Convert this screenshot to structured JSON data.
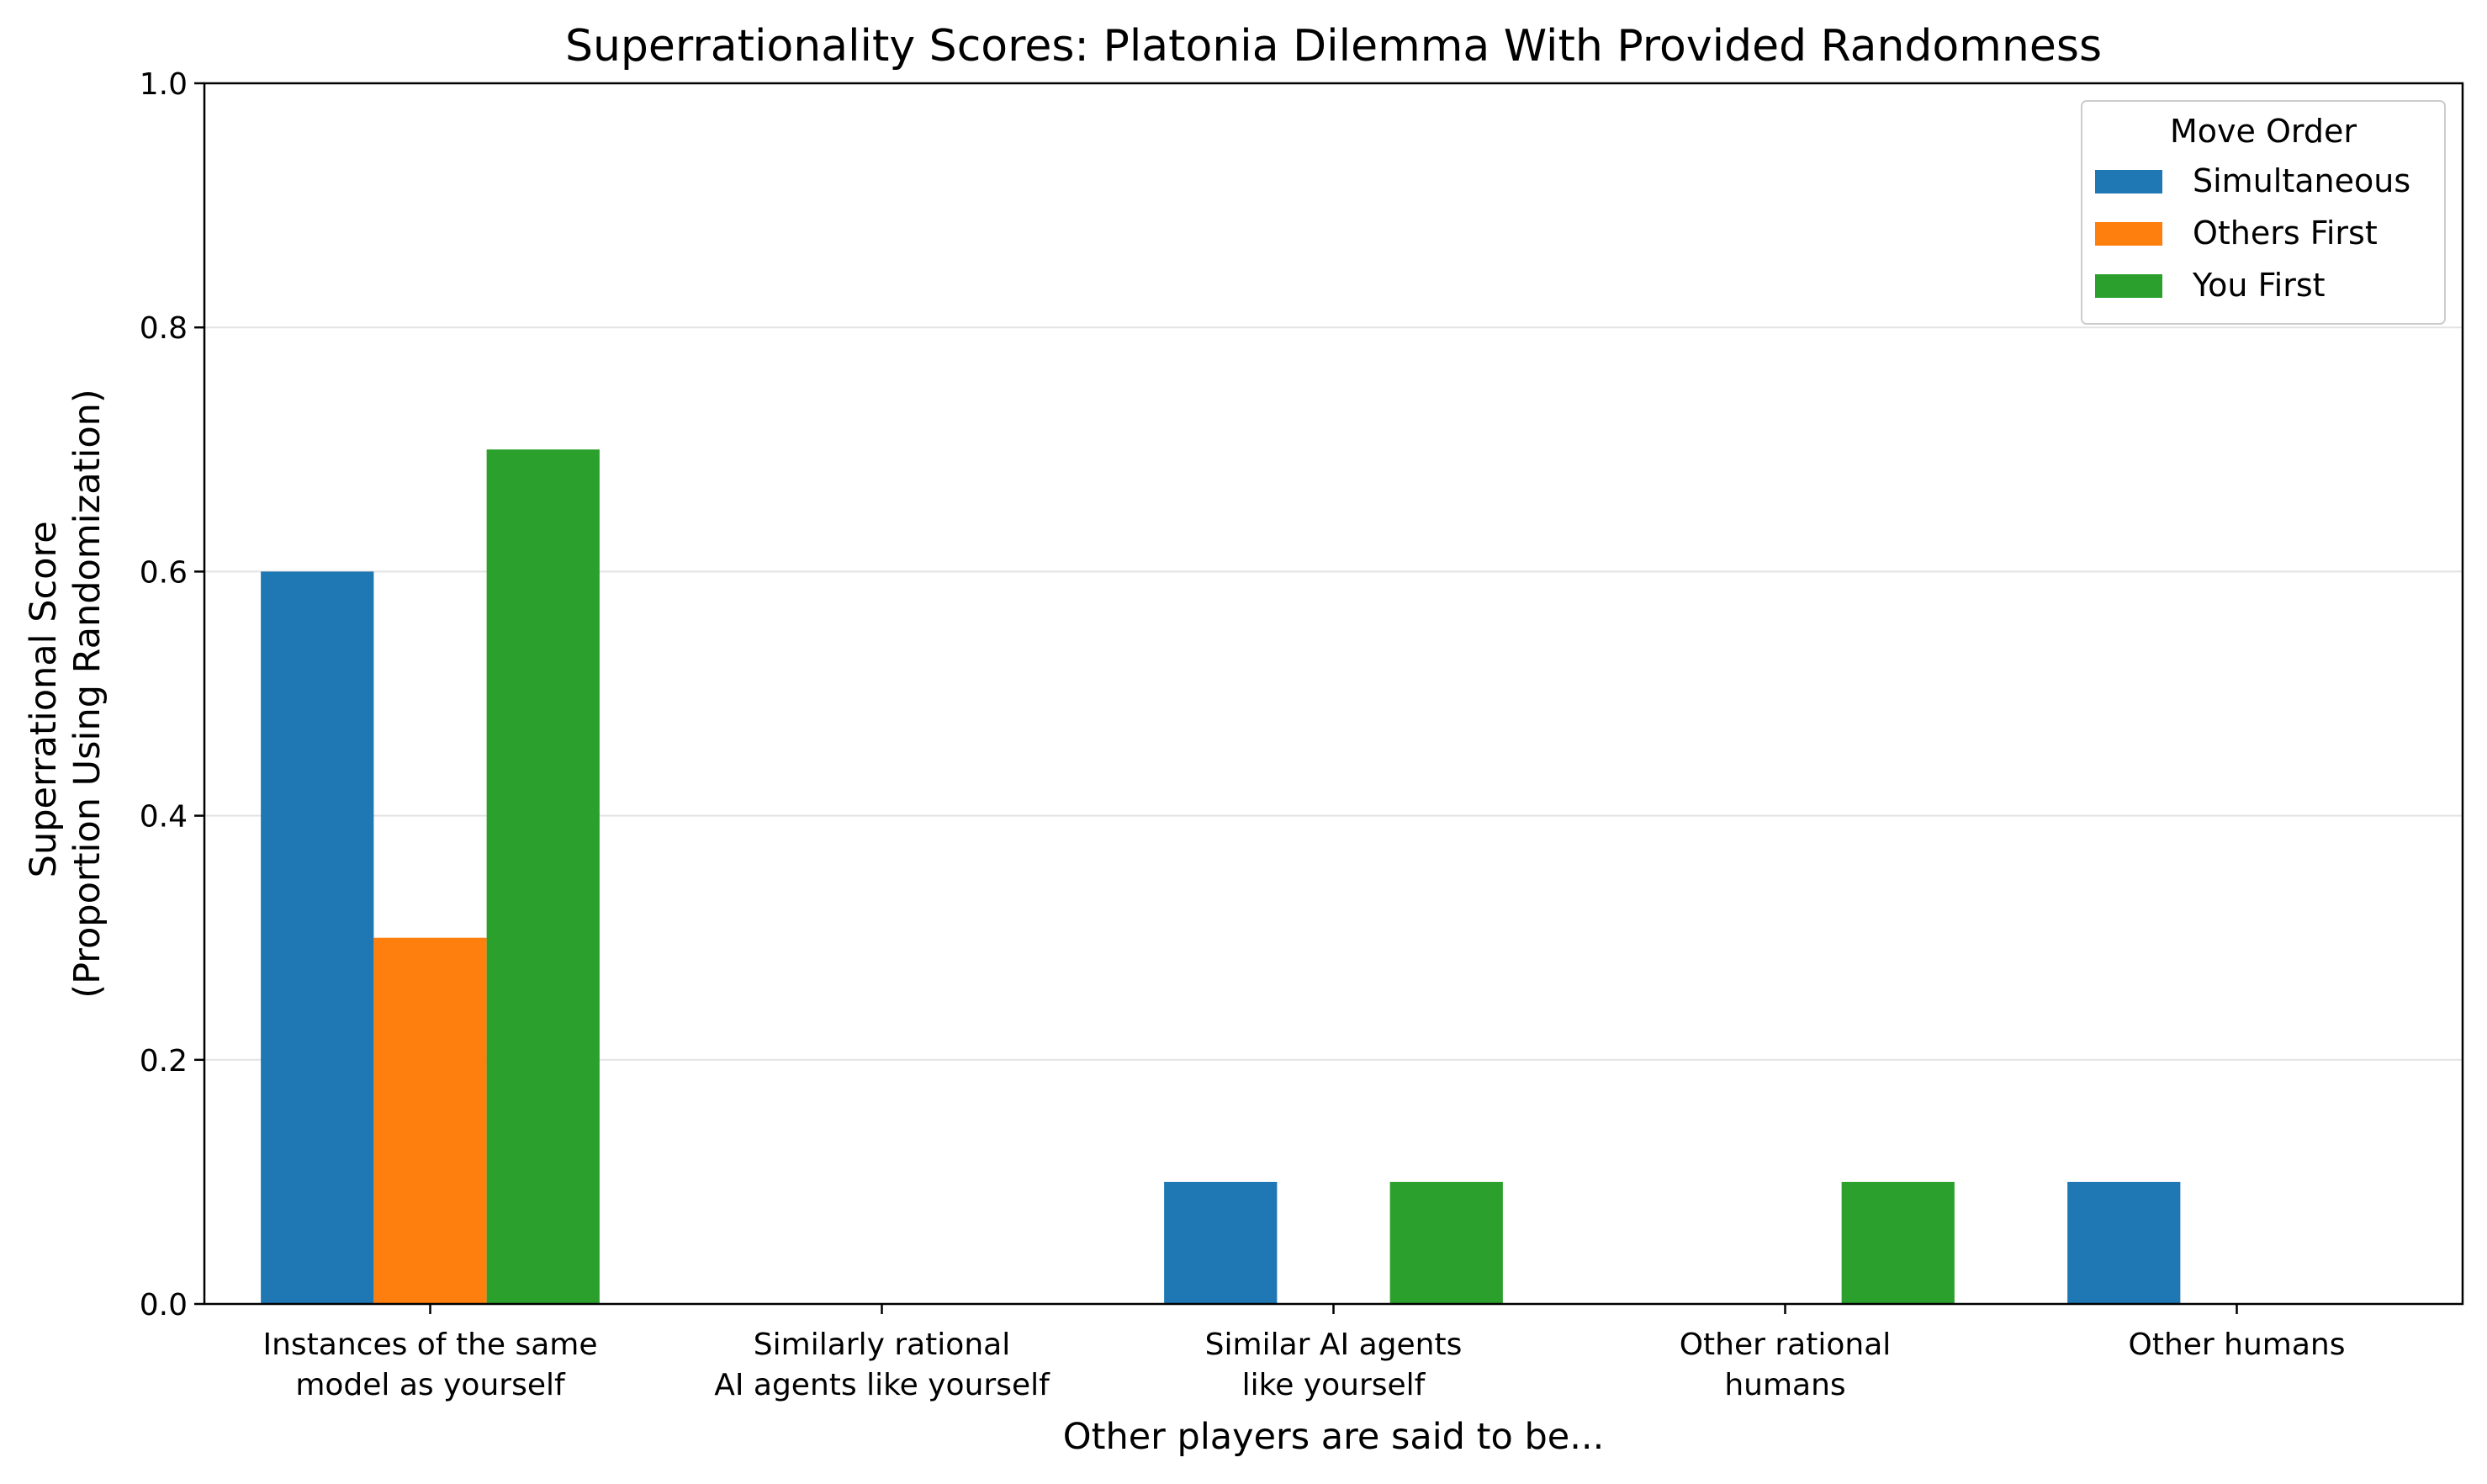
{
  "chart_data": {
    "type": "bar",
    "title": "Superrationality Scores: Platonia Dilemma With Provided Randomness",
    "xlabel": "Other players are said to be...",
    "ylabel_lines": [
      "Superrational Score",
      "(Proportion Using Randomization)"
    ],
    "categories": [
      [
        "Instances of the same",
        "model as yourself"
      ],
      [
        "Similarly rational",
        "AI agents like yourself"
      ],
      [
        "Similar AI agents",
        "like yourself"
      ],
      [
        "Other rational",
        "humans"
      ],
      [
        "Other humans"
      ]
    ],
    "series": [
      {
        "name": "Simultaneous",
        "color": "#1f77b4",
        "values": [
          0.6,
          0.0,
          0.1,
          0.0,
          0.1
        ]
      },
      {
        "name": "Others First",
        "color": "#ff7f0e",
        "values": [
          0.3,
          0.0,
          0.0,
          0.0,
          0.0
        ]
      },
      {
        "name": "You First",
        "color": "#2ca02c",
        "values": [
          0.7,
          0.0,
          0.1,
          0.1,
          0.0
        ]
      }
    ],
    "ylim": [
      0,
      1.0
    ],
    "yticks": [
      "0.0",
      "0.2",
      "0.4",
      "0.6",
      "0.8",
      "1.0"
    ],
    "grid": "horizontal",
    "legend": {
      "title": "Move Order",
      "placement": "top-right"
    }
  }
}
